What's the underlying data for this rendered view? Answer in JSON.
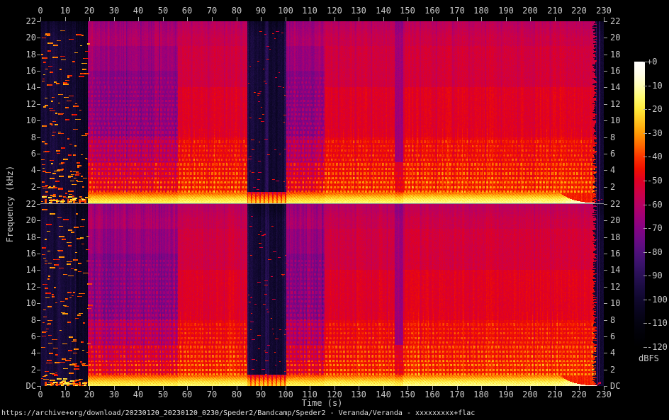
{
  "footer": {
    "url": "https://archive+org/download/20230120_20230120_0230/Speder2/Bandcamp/Speder2 - Veranda/Veranda - xxxxxxxxx+flac"
  },
  "axes": {
    "time_label": "Time (s)",
    "freq_label": "Frequency (kHz)",
    "time_ticks": [
      0,
      10,
      20,
      30,
      40,
      50,
      60,
      70,
      80,
      90,
      100,
      110,
      120,
      130,
      140,
      150,
      160,
      170,
      180,
      190,
      200,
      210,
      220,
      230
    ],
    "freq_ticks": [
      22,
      20,
      18,
      16,
      14,
      12,
      10,
      8,
      6,
      4,
      2
    ],
    "dc_label": "DC"
  },
  "colorbar": {
    "label": "dBFS",
    "ticks": [
      "+0",
      "-10",
      "-20",
      "-30",
      "-40",
      "-50",
      "-60",
      "-70",
      "-80",
      "-90",
      "-100",
      "-110",
      "-120"
    ]
  },
  "chart_data": {
    "type": "heatmap",
    "subtype": "stereo-audio-spectrogram",
    "title": "",
    "x": {
      "label": "Time (s)",
      "min": 0,
      "max": 230,
      "tick_step": 10
    },
    "y": {
      "label": "Frequency (kHz)",
      "min": 0,
      "max": 22,
      "tick_step": 2,
      "zero_label": "DC"
    },
    "z": {
      "label": "dBFS",
      "min": -120,
      "max": 0,
      "tick_step": 10
    },
    "channels": [
      "left",
      "right"
    ],
    "grid": false,
    "legend_position": "right-colorbar",
    "palette_dbfs_hex": [
      [
        0,
        "#ffffff"
      ],
      [
        5,
        "#fffde9"
      ],
      [
        10,
        "#fffdb8"
      ],
      [
        15,
        "#fffb71"
      ],
      [
        20,
        "#ffe93a"
      ],
      [
        25,
        "#ffc41e"
      ],
      [
        30,
        "#ff9b05"
      ],
      [
        35,
        "#ff6a00"
      ],
      [
        40,
        "#fb3500"
      ],
      [
        45,
        "#f01000"
      ],
      [
        50,
        "#e00023"
      ],
      [
        55,
        "#cd0045"
      ],
      [
        60,
        "#b80062"
      ],
      [
        65,
        "#a00077"
      ],
      [
        70,
        "#860384"
      ],
      [
        75,
        "#6b0a85"
      ],
      [
        80,
        "#50107c"
      ],
      [
        85,
        "#3a126b"
      ],
      [
        90,
        "#281055"
      ],
      [
        95,
        "#1a0c40"
      ],
      [
        100,
        "#10082e"
      ],
      [
        105,
        "#09051e"
      ],
      [
        110,
        "#040310"
      ],
      [
        115,
        "#010107"
      ],
      [
        120,
        "#000000"
      ]
    ],
    "segments": [
      {
        "t0": 0,
        "t1": 0.35,
        "kind": "silence",
        "desc": "black lead-in"
      },
      {
        "t0": 0.35,
        "t1": 19.45,
        "kind": "sparse",
        "desc": "quiet intro, scattered red/orange transients on dark indigo"
      },
      {
        "t0": 19.45,
        "t1": 56,
        "kind": "striped",
        "desc": "purple/red striped section with dotted harmonic rows"
      },
      {
        "t0": 56,
        "t1": 84.6,
        "kind": "loud",
        "desc": "full-band red energy, bright yellow bass band"
      },
      {
        "t0": 84.6,
        "t1": 100.4,
        "kind": "quiet",
        "desc": "dark breakdown with sparse arcs"
      },
      {
        "t0": 100.4,
        "t1": 116,
        "kind": "striped",
        "desc": "second striped purple section"
      },
      {
        "t0": 116,
        "t1": 144.6,
        "kind": "loud",
        "desc": "full-band red energy"
      },
      {
        "t0": 144.6,
        "t1": 148.2,
        "kind": "gap",
        "desc": "brief darker purple dip"
      },
      {
        "t0": 148.2,
        "t1": 226.3,
        "kind": "loud",
        "desc": "full-band red energy to end"
      },
      {
        "t0": 226.3,
        "t1": 230,
        "kind": "end",
        "desc": "track end, bass tail hooks upward"
      }
    ],
    "render_model": {
      "seeds": [
        20230120,
        20230121
      ],
      "hf_profiles": {
        "striped": [
          [
            19,
            -56
          ],
          [
            16,
            -60
          ],
          [
            8,
            -64
          ],
          [
            5,
            -57
          ],
          [
            3,
            -51
          ],
          [
            0,
            -45
          ]
        ],
        "loud": [
          [
            19,
            -53
          ],
          [
            14,
            -51
          ],
          [
            8,
            -47.5
          ],
          [
            5,
            -45
          ],
          [
            3,
            -43.5
          ],
          [
            0,
            -41
          ]
        ]
      },
      "stripe_amp": {
        "silence": 3,
        "sparse": 8,
        "striped": 12,
        "loud": 6,
        "quiet": 9,
        "gap": 9,
        "end": 2
      },
      "base": {
        "silence": -104,
        "sparse": -93,
        "quiet": -87,
        "gap": -62,
        "end": -98
      },
      "dots": {
        "row_f0": 0.3,
        "row_df": 0.55,
        "max_f": {
          "striped": 15.2,
          "loud": 7.8,
          "gap": 7.8
        },
        "bonus": {
          "striped": [
            13,
            0.55
          ],
          "loud": [
            14,
            1.3
          ],
          "gap": [
            8,
            1.3
          ]
        }
      },
      "band": {
        "points": [
          [
            0,
            -15
          ],
          [
            0.45,
            -18
          ],
          [
            0.9,
            -27
          ],
          [
            1.35,
            -38
          ]
        ],
        "adj": {
          "sparse": -10,
          "quiet": -8,
          "striped": -2,
          "gap": -2,
          "loud": 0
        },
        "late_boost": 2,
        "taper_start": 212,
        "taper_tau": 4.6
      },
      "quiet_dark_bands": [
        [
          85.1,
          91.8
        ],
        [
          93.2,
          99.6
        ]
      ],
      "intro_dim": [
        14.5,
        19.45
      ],
      "blobs": {
        "sparse": {
          "count": 170,
          "lvl_min": -46,
          "lvl_rng": 16
        },
        "sparse_bright": {
          "count": 14,
          "lvl_min": -26,
          "lvl_rng": 6
        },
        "quiet": {
          "count": 60,
          "lvl_min": -57,
          "lvl_rng": 12
        }
      },
      "end_hook": {
        "f0": 0.06,
        "slope": 0.17,
        "lvl": -44,
        "fade": 5
      }
    }
  }
}
